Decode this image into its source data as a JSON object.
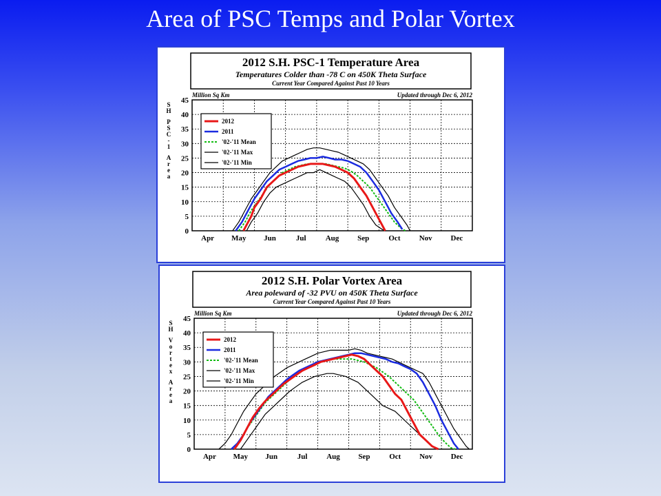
{
  "slide": {
    "title": "Area of PSC Temps and Polar Vortex"
  },
  "chart_data": [
    {
      "type": "line",
      "title": "2012 S.H. PSC-1 Temperature Area",
      "subtitle": "Temperatures Colder than -78 C on 450K Theta Surface",
      "note": "Current Year Compared Against Past 10 Years",
      "units_label": "Million Sq Km",
      "updated": "Updated through Dec 6, 2012",
      "ylabel": "SH PSC-1 Area",
      "ylim": [
        0,
        45
      ],
      "yticks": [
        "0",
        "5",
        "10",
        "15",
        "20",
        "25",
        "30",
        "35",
        "40",
        "45"
      ],
      "xlim": [
        0,
        9
      ],
      "x_months": [
        "Apr",
        "May",
        "Jun",
        "Jul",
        "Aug",
        "Sep",
        "Oct",
        "Nov",
        "Dec"
      ],
      "grid": true,
      "legend_position": "top-left",
      "series": [
        {
          "name": "2012",
          "color": "#e81818",
          "style": "solid",
          "width": 3,
          "x": [
            1.65,
            1.75,
            1.9,
            2.0,
            2.2,
            2.4,
            2.6,
            2.8,
            3.0,
            3.2,
            3.4,
            3.6,
            3.8,
            4.0,
            4.2,
            4.4,
            4.6,
            4.8,
            5.0,
            5.2,
            5.4,
            5.6,
            5.8,
            5.95,
            6.1,
            6.2
          ],
          "y": [
            0,
            2,
            5,
            8,
            11,
            15,
            17,
            19,
            20,
            21,
            22,
            22.5,
            23,
            23,
            23,
            22.5,
            22,
            21,
            20,
            18,
            15,
            12,
            8,
            5,
            2,
            0
          ]
        },
        {
          "name": "2011",
          "color": "#1a2be0",
          "style": "solid",
          "width": 2.5,
          "x": [
            1.4,
            1.6,
            1.8,
            2.0,
            2.2,
            2.4,
            2.6,
            2.8,
            3.0,
            3.2,
            3.4,
            3.6,
            3.8,
            4.0,
            4.2,
            4.4,
            4.6,
            4.8,
            5.0,
            5.2,
            5.4,
            5.6,
            5.8,
            6.0,
            6.2,
            6.4,
            6.6,
            6.75
          ],
          "y": [
            0,
            3,
            7,
            11,
            14,
            17,
            19,
            21,
            22,
            23,
            24,
            24.5,
            25,
            25,
            25.5,
            25,
            24.5,
            24.5,
            24,
            23,
            22,
            20,
            17,
            14,
            10,
            6,
            3,
            0.5
          ]
        },
        {
          "name": "'02-'11 Mean",
          "color": "#11bb11",
          "style": "dotted",
          "width": 2,
          "x": [
            1.5,
            1.7,
            1.9,
            2.1,
            2.3,
            2.5,
            2.7,
            2.9,
            3.1,
            3.3,
            3.5,
            3.7,
            3.9,
            4.1,
            4.3,
            4.5,
            4.7,
            4.9,
            5.1,
            5.3,
            5.5,
            5.7,
            5.9,
            6.1,
            6.3,
            6.5,
            6.7,
            6.85
          ],
          "y": [
            0,
            3,
            7,
            10,
            13,
            16,
            18,
            20,
            21,
            22,
            22.5,
            23,
            23,
            23,
            23,
            22.5,
            22,
            21.5,
            20.5,
            19,
            17,
            15,
            12,
            9,
            6,
            3,
            1,
            0
          ]
        },
        {
          "name": "'02-'11 Max",
          "color": "#000000",
          "style": "solid",
          "width": 1.2,
          "x": [
            1.3,
            1.5,
            1.7,
            1.9,
            2.1,
            2.3,
            2.5,
            2.7,
            2.9,
            3.1,
            3.3,
            3.5,
            3.7,
            3.9,
            4.1,
            4.3,
            4.5,
            4.7,
            4.9,
            5.1,
            5.3,
            5.5,
            5.7,
            5.9,
            6.1,
            6.3,
            6.5,
            6.7,
            6.9,
            7.0
          ],
          "y": [
            0,
            3,
            7,
            11,
            14,
            17,
            20,
            22,
            24,
            25,
            26,
            27,
            28,
            28.5,
            28.5,
            28,
            27.5,
            27,
            26,
            25,
            24,
            23,
            21,
            18,
            15,
            12,
            8,
            5,
            2,
            0
          ]
        },
        {
          "name": "'02-'11 Min",
          "color": "#000000",
          "style": "solid",
          "width": 1.2,
          "x": [
            1.75,
            1.9,
            2.1,
            2.3,
            2.5,
            2.7,
            2.9,
            3.1,
            3.3,
            3.5,
            3.7,
            3.9,
            4.1,
            4.3,
            4.5,
            4.7,
            4.9,
            5.1,
            5.3,
            5.5,
            5.7,
            5.9,
            6.1,
            6.2
          ],
          "y": [
            0,
            3,
            6,
            10,
            13,
            15,
            16,
            17,
            18,
            19,
            20,
            20,
            21,
            20,
            19,
            18,
            17,
            15,
            12,
            9,
            5,
            2,
            0.5,
            0
          ]
        }
      ]
    },
    {
      "type": "line",
      "title": "2012 S.H. Polar Vortex Area",
      "subtitle": "Area poleward of -32 PVU on 450K Theta Surface",
      "note": "Current Year Compared Against Past 10 Years",
      "units_label": "Million Sq Km",
      "updated": "Updated through Dec 6, 2012",
      "ylabel": "SH Vortex Area",
      "ylim": [
        0,
        45
      ],
      "yticks": [
        "0",
        "5",
        "10",
        "15",
        "20",
        "25",
        "30",
        "35",
        "40",
        "45"
      ],
      "xlim": [
        0,
        9
      ],
      "x_months": [
        "Apr",
        "May",
        "Jun",
        "Jul",
        "Aug",
        "Sep",
        "Oct",
        "Nov",
        "Dec"
      ],
      "grid": true,
      "legend_position": "top-left",
      "series": [
        {
          "name": "2012",
          "color": "#e81818",
          "style": "solid",
          "width": 3,
          "x": [
            1.3,
            1.5,
            1.7,
            1.9,
            2.1,
            2.3,
            2.5,
            2.7,
            2.9,
            3.1,
            3.3,
            3.5,
            3.7,
            3.9,
            4.1,
            4.3,
            4.5,
            4.7,
            4.9,
            5.1,
            5.3,
            5.5,
            5.7,
            5.9,
            6.1,
            6.3,
            6.5,
            6.7,
            6.9,
            7.1,
            7.3,
            7.5,
            7.7,
            7.9
          ],
          "y": [
            0,
            3,
            7,
            11,
            14,
            16.5,
            18.5,
            20.5,
            22.5,
            24,
            25.5,
            27,
            28,
            29,
            30,
            30.5,
            31,
            31.5,
            32,
            32.5,
            32,
            31,
            29,
            27,
            25,
            22,
            19,
            17,
            13,
            9,
            5,
            3,
            1,
            0
          ]
        },
        {
          "name": "2011",
          "color": "#1a2be0",
          "style": "solid",
          "width": 2.5,
          "x": [
            1.2,
            1.4,
            1.6,
            1.8,
            2.0,
            2.2,
            2.4,
            2.6,
            2.8,
            3.0,
            3.2,
            3.4,
            3.6,
            3.8,
            4.0,
            4.2,
            4.4,
            4.6,
            4.8,
            5.0,
            5.2,
            5.4,
            5.6,
            5.8,
            6.0,
            6.2,
            6.4,
            6.6,
            6.8,
            7.0,
            7.2,
            7.4,
            7.6,
            7.8,
            8.0,
            8.2,
            8.4,
            8.55
          ],
          "y": [
            0,
            2,
            5,
            9,
            12,
            15,
            18,
            20,
            22,
            24,
            25.5,
            27,
            28,
            29,
            30,
            30.5,
            31,
            31.5,
            32,
            32.5,
            33,
            33,
            32.5,
            32,
            31.5,
            31,
            30,
            29.5,
            28.5,
            27.5,
            26,
            23,
            19,
            15,
            10,
            6,
            2,
            0
          ]
        },
        {
          "name": "'02-'11 Mean",
          "color": "#11bb11",
          "style": "dotted",
          "width": 2,
          "x": [
            1.3,
            1.5,
            1.7,
            1.9,
            2.1,
            2.3,
            2.5,
            2.7,
            2.9,
            3.1,
            3.3,
            3.5,
            3.7,
            3.9,
            4.1,
            4.3,
            4.5,
            4.7,
            4.9,
            5.1,
            5.3,
            5.5,
            5.7,
            5.9,
            6.1,
            6.3,
            6.5,
            6.7,
            6.9,
            7.1,
            7.3,
            7.5,
            7.7,
            7.9,
            8.1,
            8.3,
            8.45
          ],
          "y": [
            0,
            3,
            7,
            10,
            13,
            16,
            18,
            20,
            22,
            24,
            25.5,
            27,
            28,
            29,
            30,
            30.5,
            31,
            31,
            31,
            31,
            30.5,
            30,
            29,
            28,
            26.5,
            25,
            23,
            21,
            19,
            17,
            14,
            11,
            8,
            5,
            2.5,
            0.5,
            0
          ]
        },
        {
          "name": "'02-'11 Max",
          "color": "#000000",
          "style": "solid",
          "width": 1.2,
          "x": [
            0.8,
            1.0,
            1.2,
            1.4,
            1.6,
            1.8,
            2.0,
            2.2,
            2.4,
            2.6,
            2.8,
            3.0,
            3.2,
            3.4,
            3.6,
            3.8,
            4.0,
            4.2,
            4.4,
            4.6,
            4.8,
            5.0,
            5.2,
            5.4,
            5.6,
            5.8,
            6.0,
            6.2,
            6.4,
            6.6,
            6.8,
            7.0,
            7.2,
            7.4,
            7.6,
            7.8,
            8.0,
            8.2,
            8.4,
            8.6,
            8.8,
            8.9
          ],
          "y": [
            0,
            2,
            5,
            9,
            13,
            16,
            19,
            21,
            23,
            25,
            26.5,
            28,
            29,
            30,
            31,
            32,
            33,
            33.5,
            34,
            34,
            34,
            34,
            34.5,
            34,
            33,
            32.5,
            32,
            31.5,
            31,
            30,
            29,
            28,
            27,
            26,
            23,
            19,
            15,
            11,
            7,
            4,
            1,
            0
          ]
        },
        {
          "name": "'02-'11 Min",
          "color": "#000000",
          "style": "solid",
          "width": 1.2,
          "x": [
            1.5,
            1.7,
            1.9,
            2.1,
            2.3,
            2.5,
            2.7,
            2.9,
            3.1,
            3.3,
            3.5,
            3.7,
            3.9,
            4.1,
            4.3,
            4.5,
            4.7,
            4.9,
            5.1,
            5.3,
            5.5,
            5.7,
            5.9,
            6.1,
            6.3,
            6.5,
            6.7,
            6.9,
            7.1,
            7.3,
            7.5,
            7.7,
            7.85
          ],
          "y": [
            0,
            3,
            6,
            9,
            12,
            14,
            16,
            18,
            20,
            21.5,
            23,
            24,
            25,
            25.5,
            26,
            26,
            25.5,
            25,
            24,
            23,
            21,
            19,
            17,
            15,
            14,
            13,
            11,
            9,
            7,
            5,
            3,
            1,
            0
          ]
        }
      ]
    }
  ]
}
